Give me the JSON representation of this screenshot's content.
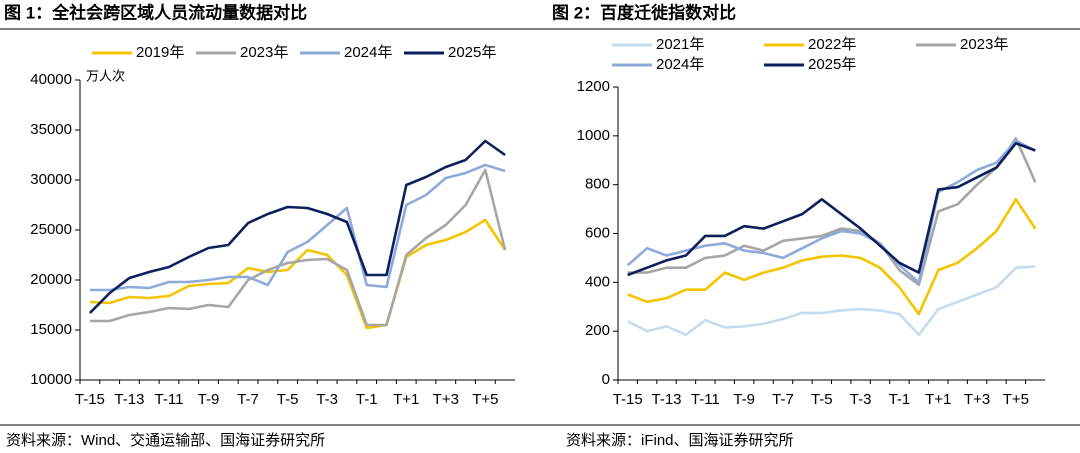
{
  "chart_data": [
    {
      "type": "line",
      "title": "图 1：全社会跨区域人员流动量数据对比",
      "y_unit": "万人次",
      "source": "资料来源：Wind、交通运输部、国海证券研究所",
      "categories": [
        "T-15",
        null,
        "T-13",
        null,
        "T-11",
        null,
        "T-9",
        null,
        "T-7",
        null,
        "T-5",
        null,
        "T-3",
        null,
        "T-1",
        null,
        "T+1",
        null,
        "T+3",
        null,
        "T+5",
        null
      ],
      "ylim": [
        10000,
        40000
      ],
      "yticks": [
        10000,
        15000,
        20000,
        25000,
        30000,
        35000,
        40000
      ],
      "grid": false,
      "series": [
        {
          "name": "2019年",
          "color": "#f5c400",
          "values": [
            17800,
            17700,
            18300,
            18200,
            18400,
            19400,
            19600,
            19700,
            21200,
            20800,
            21000,
            23000,
            22500,
            20500,
            15200,
            15500,
            22300,
            23500,
            24000,
            24800,
            26000,
            23000
          ]
        },
        {
          "name": "2023年",
          "color": "#a6a6a6",
          "values": [
            15900,
            15900,
            16500,
            16800,
            17200,
            17100,
            17500,
            17300,
            20000,
            21000,
            21700,
            22000,
            22100,
            21000,
            15500,
            15500,
            22500,
            24200,
            25500,
            27500,
            31000,
            23000
          ]
        },
        {
          "name": "2024年",
          "color": "#8eaadb",
          "values": [
            19000,
            19000,
            19300,
            19200,
            19800,
            19800,
            20000,
            20300,
            20300,
            19500,
            22800,
            23800,
            25500,
            27200,
            19500,
            19300,
            27500,
            28500,
            30200,
            30700,
            31500,
            30900
          ]
        },
        {
          "name": "2025年",
          "color": "#0d1f5c",
          "values": [
            16700,
            18700,
            20200,
            20800,
            21300,
            22300,
            23200,
            23500,
            25700,
            26600,
            27300,
            27200,
            26600,
            25800,
            20500,
            20500,
            29500,
            30300,
            31300,
            32000,
            33900,
            32500
          ]
        }
      ]
    },
    {
      "type": "line",
      "title": "图 2：百度迁徙指数对比",
      "source": "资料来源：iFind、国海证券研究所",
      "categories": [
        "T-15",
        null,
        "T-13",
        null,
        "T-11",
        null,
        "T-9",
        null,
        "T-7",
        null,
        "T-5",
        null,
        "T-3",
        null,
        "T-1",
        null,
        "T+1",
        null,
        "T+3",
        null,
        "T+5",
        null
      ],
      "ylim": [
        0,
        1200
      ],
      "yticks": [
        0,
        200,
        400,
        600,
        800,
        1000,
        1200
      ],
      "grid": false,
      "series": [
        {
          "name": "2021年",
          "color": "#c5dcef",
          "values": [
            240,
            200,
            220,
            185,
            245,
            215,
            220,
            230,
            250,
            275,
            275,
            285,
            290,
            285,
            270,
            185,
            290,
            320,
            350,
            380,
            460,
            465
          ]
        },
        {
          "name": "2022年",
          "color": "#f5c400",
          "values": [
            350,
            320,
            335,
            370,
            370,
            440,
            410,
            440,
            460,
            490,
            505,
            510,
            500,
            460,
            380,
            270,
            450,
            480,
            540,
            610,
            740,
            620
          ]
        },
        {
          "name": "2023年",
          "color": "#a6a6a6",
          "values": [
            440,
            440,
            460,
            460,
            500,
            510,
            550,
            530,
            570,
            580,
            590,
            620,
            610,
            560,
            450,
            390,
            690,
            720,
            800,
            870,
            990,
            810
          ]
        },
        {
          "name": "2024年",
          "color": "#8eaadb",
          "values": [
            470,
            540,
            510,
            530,
            550,
            560,
            530,
            520,
            500,
            540,
            580,
            610,
            600,
            560,
            470,
            400,
            770,
            810,
            860,
            890,
            980,
            940
          ]
        },
        {
          "name": "2025年",
          "color": "#0d1f5c",
          "values": [
            430,
            460,
            490,
            510,
            590,
            590,
            630,
            620,
            650,
            680,
            740,
            680,
            620,
            550,
            480,
            440,
            780,
            790,
            830,
            870,
            970,
            940
          ]
        }
      ]
    }
  ]
}
